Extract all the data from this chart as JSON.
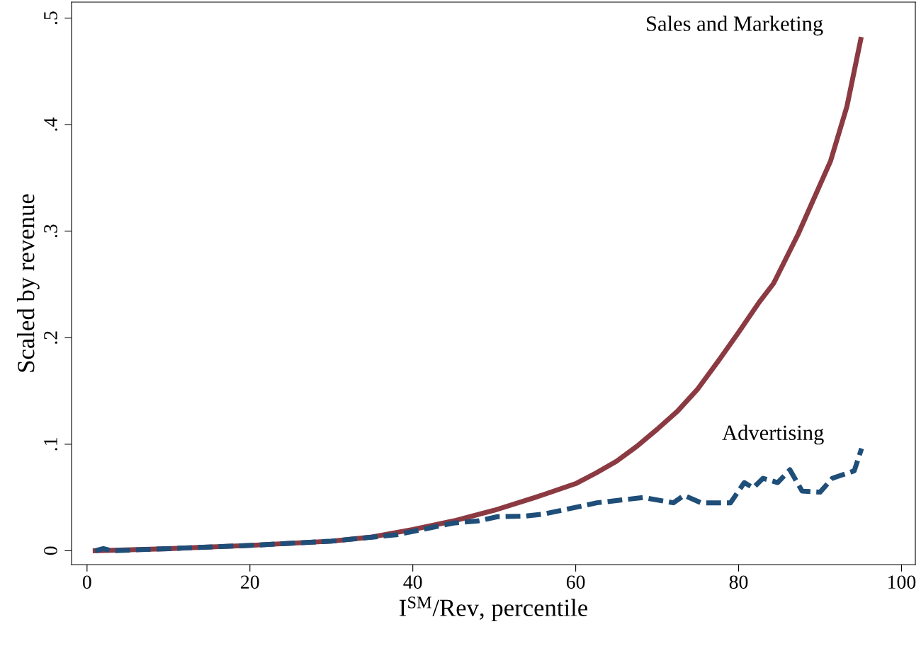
{
  "chart_data": {
    "type": "line",
    "xlabel": "I$^{SM}$/Rev, percentile",
    "ylabel": "Scaled by revenue",
    "xlim": [
      -1.9,
      101.7
    ],
    "ylim": [
      -0.013,
      0.515
    ],
    "xticks": [
      0,
      20,
      40,
      60,
      80,
      100
    ],
    "yticks": [
      {
        "value": 0,
        "label": "0"
      },
      {
        "value": 0.1,
        "label": ".1"
      },
      {
        "value": 0.2,
        "label": ".2"
      },
      {
        "value": 0.3,
        "label": ".3"
      },
      {
        "value": 0.4,
        "label": ".4"
      },
      {
        "value": 0.5,
        "label": ".5"
      }
    ],
    "grid": false,
    "legend": false,
    "series": [
      {
        "name": "Sales and Marketing",
        "color": "#8b3a42",
        "line_style": "solid",
        "x": [
          1,
          10,
          20,
          30,
          35,
          40,
          45,
          50,
          55,
          60,
          62.5,
          65,
          67.5,
          70,
          72.5,
          75,
          77.5,
          80,
          82.5,
          84.3,
          87.3,
          91.3,
          93.3,
          95
        ],
        "values": [
          0,
          0.002,
          0.005,
          0.009,
          0.013,
          0.02,
          0.028,
          0.038,
          0.05,
          0.063,
          0.073,
          0.084,
          0.098,
          0.114,
          0.131,
          0.152,
          0.178,
          0.205,
          0.233,
          0.251,
          0.297,
          0.366,
          0.417,
          0.48
        ]
      },
      {
        "name": "Advertising",
        "color": "#1f4e79",
        "line_style": "dashed",
        "x": [
          1,
          2,
          3,
          10,
          20,
          30,
          38,
          45,
          48,
          50.4,
          53.8,
          56.1,
          62.6,
          68.3,
          72,
          73.3,
          75.4,
          79,
          80.7,
          81.8,
          83,
          84.8,
          86.3,
          87.8,
          90,
          91.5,
          94.2,
          95.1
        ],
        "values": [
          0,
          0.002,
          0,
          0.002,
          0.005,
          0.009,
          0.015,
          0.026,
          0.028,
          0.032,
          0.0325,
          0.0345,
          0.045,
          0.05,
          0.045,
          0.052,
          0.045,
          0.045,
          0.064,
          0.059,
          0.068,
          0.064,
          0.076,
          0.056,
          0.055,
          0.068,
          0.075,
          0.096
        ]
      }
    ]
  }
}
